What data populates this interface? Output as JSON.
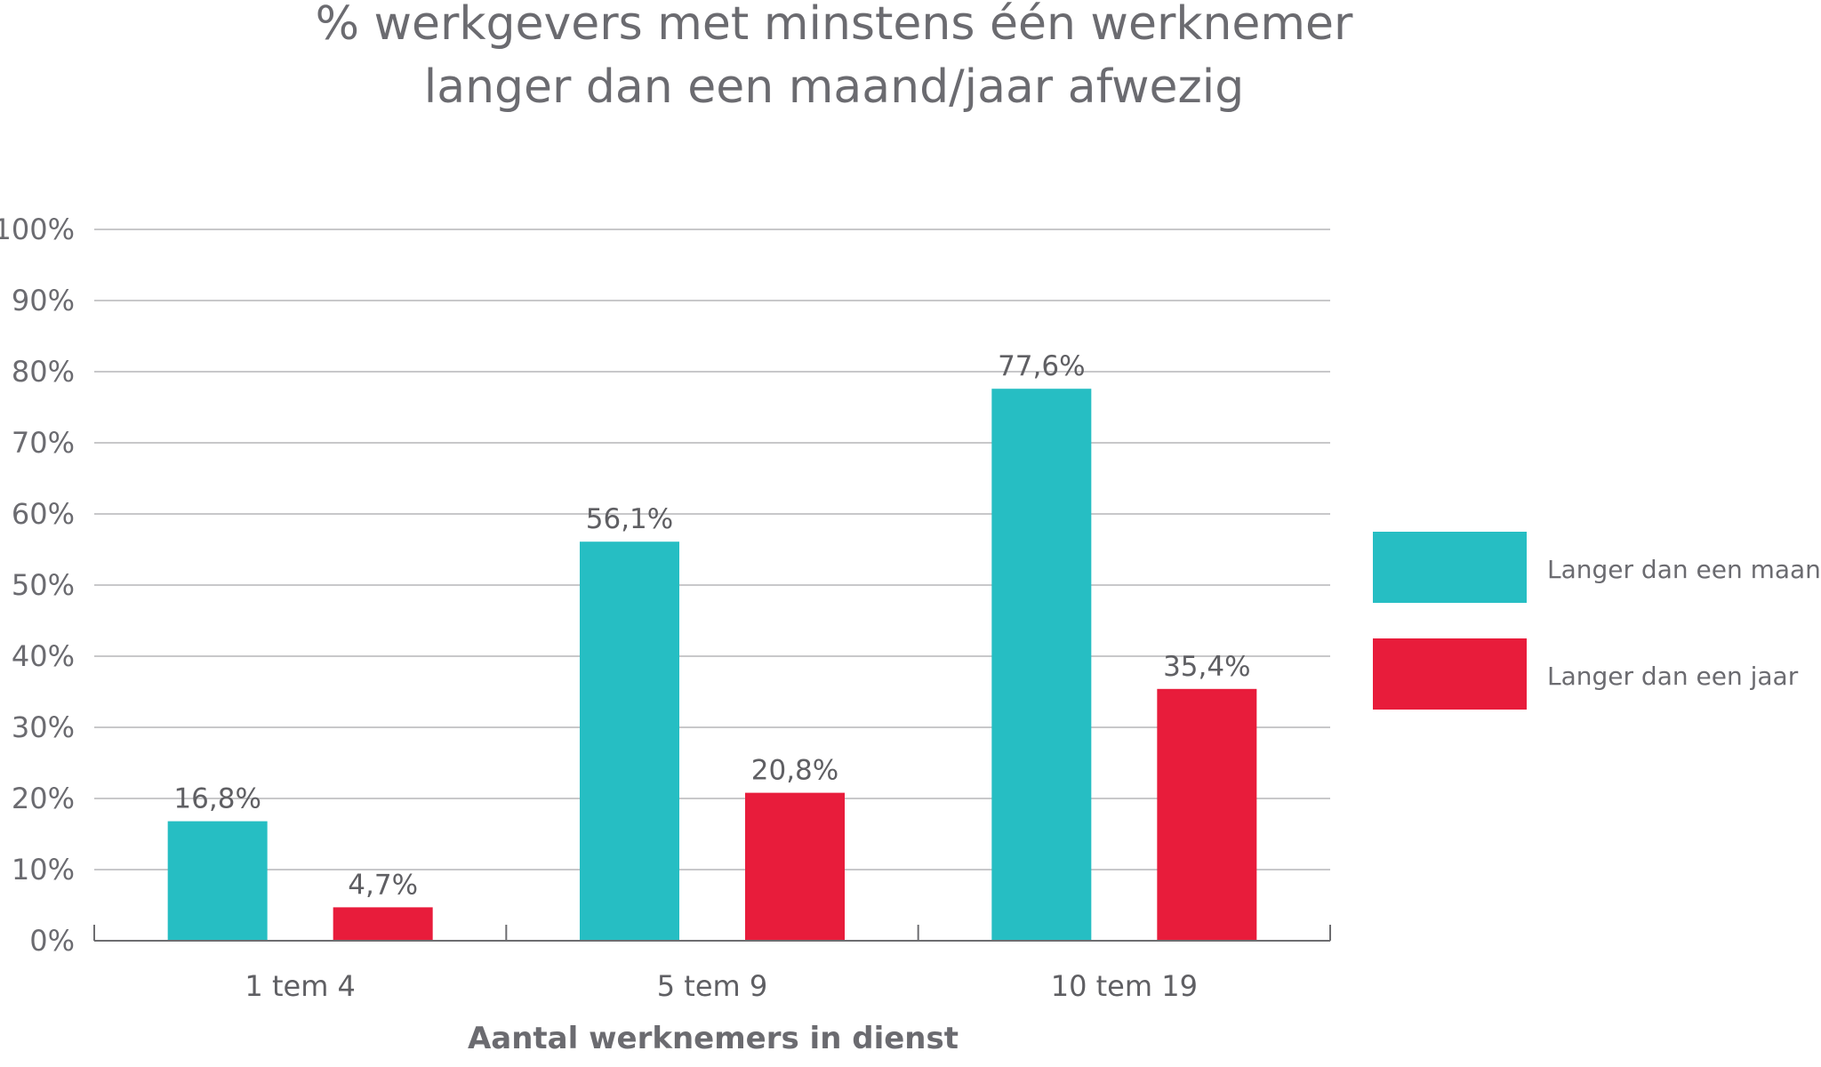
{
  "chart_data": {
    "type": "bar",
    "title": "% werkgevers met minstens één werknemer",
    "subtitle": "langer dan een maand/jaar afwezig",
    "xlabel": "Aantal werknemers in dienst",
    "ylabel": "",
    "ylim": [
      0,
      100
    ],
    "yticks": [
      "0%",
      "10%",
      "20%",
      "30%",
      "40%",
      "50%",
      "60%",
      "70%",
      "80%",
      "90%",
      "100%"
    ],
    "categories": [
      "1 tem 4",
      "5 tem 9",
      "10 tem 19"
    ],
    "series": [
      {
        "name": "Langer dan een maand",
        "color": "#26bec3",
        "values": [
          16.8,
          56.1,
          77.6
        ],
        "labels": [
          "16,8%",
          "56,1%",
          "77,6%"
        ]
      },
      {
        "name": "Langer dan een jaar",
        "color": "#e81c3b",
        "values": [
          4.7,
          20.8,
          35.4
        ],
        "labels": [
          "4,7%",
          "20,8%",
          "35,4%"
        ]
      }
    ],
    "grid": true,
    "legend_position": "right"
  }
}
